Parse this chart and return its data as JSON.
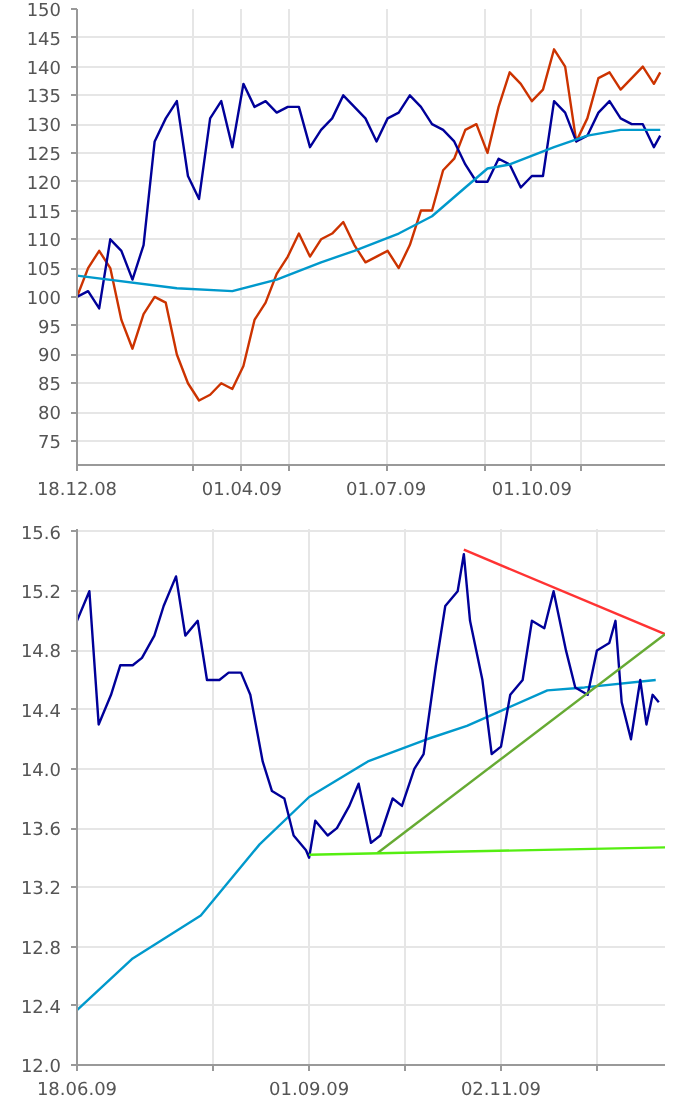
{
  "chart_data": [
    {
      "type": "line",
      "xlim": [
        "2008-12-18",
        "2009-12-24"
      ],
      "ylim": [
        70.8,
        150
      ],
      "xticks": [
        {
          "value": "2008-12-18",
          "label": "18.12.08"
        },
        {
          "value": "2009-03-01",
          "label": null
        },
        {
          "value": "2009-04-01",
          "label": "01.04.09"
        },
        {
          "value": "2009-05-01",
          "label": null
        },
        {
          "value": "2009-07-01",
          "label": "01.07.09"
        },
        {
          "value": "2009-09-01",
          "label": null
        },
        {
          "value": "2009-10-01",
          "label": "01.10.09"
        },
        {
          "value": "2009-11-01",
          "label": null
        }
      ],
      "yticks": [
        75,
        80,
        85,
        90,
        95,
        100,
        105,
        110,
        115,
        120,
        125,
        130,
        135,
        140,
        145,
        150
      ],
      "grid": true,
      "series": [
        {
          "color": "#cc3300",
          "x": [
            "2008-12-18",
            "2008-12-25",
            "2009-01-01",
            "2009-01-08",
            "2009-01-15",
            "2009-01-22",
            "2009-01-29",
            "2009-02-05",
            "2009-02-12",
            "2009-02-19",
            "2009-02-26",
            "2009-03-05",
            "2009-03-12",
            "2009-03-19",
            "2009-03-26",
            "2009-04-02",
            "2009-04-09",
            "2009-04-16",
            "2009-04-23",
            "2009-04-30",
            "2009-05-07",
            "2009-05-14",
            "2009-05-21",
            "2009-05-28",
            "2009-06-04",
            "2009-06-11",
            "2009-06-18",
            "2009-06-25",
            "2009-07-02",
            "2009-07-09",
            "2009-07-16",
            "2009-07-23",
            "2009-07-30",
            "2009-08-06",
            "2009-08-13",
            "2009-08-20",
            "2009-08-27",
            "2009-09-03",
            "2009-09-10",
            "2009-09-17",
            "2009-09-24",
            "2009-10-01",
            "2009-10-08",
            "2009-10-15",
            "2009-10-22",
            "2009-10-29",
            "2009-11-05",
            "2009-11-12",
            "2009-11-19",
            "2009-11-26",
            "2009-12-03",
            "2009-12-10",
            "2009-12-17",
            "2009-12-21"
          ],
          "values": [
            100,
            105,
            108,
            105,
            96,
            91,
            97,
            100,
            99,
            90,
            85,
            82,
            83,
            85,
            84,
            88,
            96,
            99,
            104,
            107,
            111,
            107,
            110,
            111,
            113,
            109,
            106,
            107,
            108,
            105,
            109,
            115,
            115,
            122,
            124,
            129,
            130,
            125,
            133,
            139,
            137,
            134,
            136,
            143,
            140,
            127,
            131,
            138,
            139,
            136,
            138,
            140,
            137,
            139
          ]
        },
        {
          "color": "#000099",
          "x": [
            "2008-12-18",
            "2008-12-25",
            "2009-01-01",
            "2009-01-08",
            "2009-01-15",
            "2009-01-22",
            "2009-01-29",
            "2009-02-05",
            "2009-02-12",
            "2009-02-19",
            "2009-02-26",
            "2009-03-05",
            "2009-03-12",
            "2009-03-19",
            "2009-03-26",
            "2009-04-02",
            "2009-04-09",
            "2009-04-16",
            "2009-04-23",
            "2009-04-30",
            "2009-05-07",
            "2009-05-14",
            "2009-05-21",
            "2009-05-28",
            "2009-06-04",
            "2009-06-11",
            "2009-06-18",
            "2009-06-25",
            "2009-07-02",
            "2009-07-09",
            "2009-07-16",
            "2009-07-23",
            "2009-07-30",
            "2009-08-06",
            "2009-08-13",
            "2009-08-20",
            "2009-08-27",
            "2009-09-03",
            "2009-09-10",
            "2009-09-17",
            "2009-09-24",
            "2009-10-01",
            "2009-10-08",
            "2009-10-15",
            "2009-10-22",
            "2009-10-29",
            "2009-11-05",
            "2009-11-12",
            "2009-11-19",
            "2009-11-26",
            "2009-12-03",
            "2009-12-10",
            "2009-12-17",
            "2009-12-21"
          ],
          "values": [
            100,
            101,
            98,
            110,
            108,
            103,
            109,
            127,
            131,
            134,
            121,
            117,
            131,
            134,
            126,
            137,
            133,
            134,
            132,
            133,
            133,
            126,
            129,
            131,
            135,
            133,
            131,
            127,
            131,
            132,
            135,
            133,
            130,
            129,
            127,
            123,
            120,
            120,
            124,
            123,
            119,
            121,
            121,
            134,
            132,
            127,
            128,
            132,
            134,
            131,
            130,
            130,
            126,
            128
          ]
        },
        {
          "color": "#0099cc",
          "x": [
            "2008-12-18",
            "2009-02-19",
            "2009-03-26",
            "2009-04-23",
            "2009-05-21",
            "2009-06-11",
            "2009-07-09",
            "2009-07-30",
            "2009-08-20",
            "2009-09-03",
            "2009-09-17",
            "2009-10-15",
            "2009-11-05",
            "2009-11-26",
            "2009-12-21"
          ],
          "values": [
            103.7,
            101.5,
            101,
            103,
            106,
            108,
            111,
            114,
            119,
            122.3,
            123,
            126,
            128,
            129,
            129
          ]
        }
      ]
    },
    {
      "type": "line",
      "xlim": [
        "2009-06-18",
        "2009-12-25"
      ],
      "ylim": [
        12,
        15.62
      ],
      "xticks": [
        {
          "value": "2009-06-18",
          "label": "18.06.09"
        },
        {
          "value": "2009-08-01",
          "label": null
        },
        {
          "value": "2009-09-01",
          "label": "01.09.09"
        },
        {
          "value": "2009-10-02",
          "label": null
        },
        {
          "value": "2009-11-02",
          "label": "02.11.09"
        },
        {
          "value": "2009-12-03",
          "label": null
        }
      ],
      "yticks": [
        {
          "value": 12,
          "label": "12.0"
        },
        {
          "value": 12.4,
          "label": "12.4"
        },
        {
          "value": 12.8,
          "label": "12.8"
        },
        {
          "value": 13.2,
          "label": "13.2"
        },
        {
          "value": 13.6,
          "label": "13.6"
        },
        {
          "value": 14,
          "label": "14.0"
        },
        {
          "value": 14.4,
          "label": "14.4"
        },
        {
          "value": 14.8,
          "label": "14.8"
        },
        {
          "value": 15.2,
          "label": "15.2"
        },
        {
          "value": 15.6,
          "label": "15.6"
        }
      ],
      "grid": true,
      "series": [
        {
          "color": "#0099cc",
          "x": [
            "2009-06-18",
            "2009-07-06",
            "2009-07-28",
            "2009-08-16",
            "2009-09-01",
            "2009-09-20",
            "2009-10-09",
            "2009-10-22",
            "2009-11-04",
            "2009-11-17",
            "2009-11-29",
            "2009-12-22"
          ],
          "values": [
            12.37,
            12.72,
            13.01,
            13.49,
            13.81,
            14.05,
            14.2,
            14.29,
            14.41,
            14.53,
            14.55,
            14.6
          ]
        },
        {
          "color": "#000099",
          "x": [
            "2009-06-18",
            "2009-06-22",
            "2009-06-25",
            "2009-06-29",
            "2009-07-02",
            "2009-07-06",
            "2009-07-09",
            "2009-07-13",
            "2009-07-16",
            "2009-07-20",
            "2009-07-23",
            "2009-07-27",
            "2009-07-30",
            "2009-08-03",
            "2009-08-06",
            "2009-08-10",
            "2009-08-13",
            "2009-08-17",
            "2009-08-20",
            "2009-08-24",
            "2009-08-27",
            "2009-08-31",
            "2009-09-01",
            "2009-09-03",
            "2009-09-07",
            "2009-09-10",
            "2009-09-14",
            "2009-09-17",
            "2009-09-21",
            "2009-09-24",
            "2009-09-28",
            "2009-10-01",
            "2009-10-05",
            "2009-10-08",
            "2009-10-12",
            "2009-10-15",
            "2009-10-19",
            "2009-10-21",
            "2009-10-23",
            "2009-10-27",
            "2009-10-30",
            "2009-11-02",
            "2009-11-05",
            "2009-11-09",
            "2009-11-12",
            "2009-11-16",
            "2009-11-19",
            "2009-11-23",
            "2009-11-26",
            "2009-11-30",
            "2009-12-03",
            "2009-12-07",
            "2009-12-09",
            "2009-12-11",
            "2009-12-14",
            "2009-12-17",
            "2009-12-19",
            "2009-12-21",
            "2009-12-23"
          ],
          "values": [
            15.0,
            15.2,
            14.3,
            14.5,
            14.7,
            14.7,
            14.75,
            14.9,
            15.1,
            15.3,
            14.9,
            15.0,
            14.6,
            14.6,
            14.65,
            14.65,
            14.5,
            14.05,
            13.85,
            13.8,
            13.55,
            13.45,
            13.4,
            13.65,
            13.55,
            13.6,
            13.75,
            13.9,
            13.5,
            13.55,
            13.8,
            13.75,
            14.0,
            14.1,
            14.7,
            15.1,
            15.2,
            15.45,
            15.0,
            14.6,
            14.1,
            14.15,
            14.5,
            14.6,
            15.0,
            14.95,
            15.2,
            14.8,
            14.55,
            14.5,
            14.8,
            14.85,
            15.0,
            14.45,
            14.2,
            14.6,
            14.3,
            14.5,
            14.45
          ]
        },
        {
          "color": "#ff3333",
          "x": [
            "2009-10-21",
            "2009-12-25"
          ],
          "values": [
            15.48,
            14.91
          ]
        },
        {
          "color": "#66aa33",
          "x": [
            "2009-09-23",
            "2009-12-25"
          ],
          "values": [
            13.43,
            14.91
          ]
        },
        {
          "color": "#55ee11",
          "x": [
            "2009-09-01",
            "2009-12-25"
          ],
          "values": [
            13.42,
            13.47
          ]
        }
      ]
    }
  ]
}
